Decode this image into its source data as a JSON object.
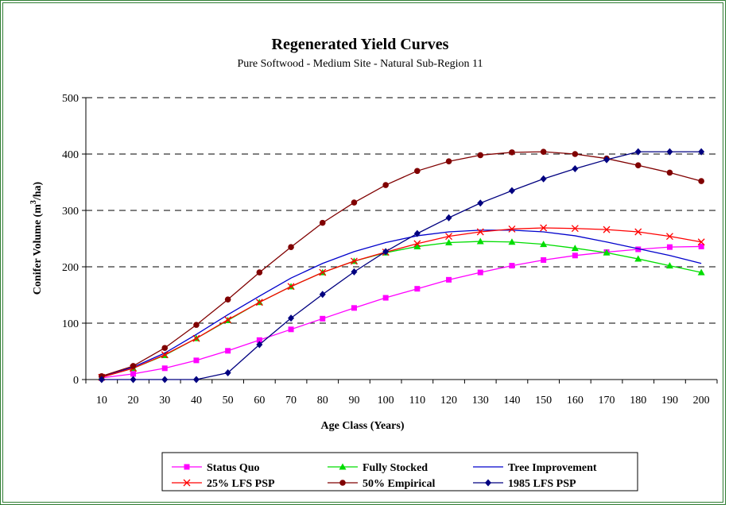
{
  "chart_data": {
    "type": "line",
    "title": "Regenerated Yield Curves",
    "subtitle": "Pure Softwood - Medium Site - Natural Sub-Region 11",
    "xlabel": "Age Class (Years)",
    "ylabel": "Conifer Volume (m³/ha)",
    "ylabel_parts": [
      "Conifer Volume (m",
      "3",
      "/ha)"
    ],
    "ylim": [
      0,
      500
    ],
    "yticks": [
      0,
      100,
      200,
      300,
      400,
      500
    ],
    "x": [
      10,
      20,
      30,
      40,
      50,
      60,
      70,
      80,
      90,
      100,
      110,
      120,
      130,
      140,
      150,
      160,
      170,
      180,
      190,
      200
    ],
    "grid": "horizontal dashed",
    "legend_position": "bottom",
    "series": [
      {
        "name": "Status Quo",
        "color": "#ff00ff",
        "marker": "square",
        "values": [
          3,
          10,
          20,
          34,
          51,
          70,
          89,
          108,
          127,
          145,
          161,
          177,
          190,
          202,
          212,
          220,
          226,
          231,
          235,
          236
        ]
      },
      {
        "name": "Fully Stocked",
        "color": "#00dd00",
        "marker": "triangle",
        "values": [
          4,
          20,
          43,
          73,
          105,
          137,
          165,
          190,
          210,
          225,
          236,
          243,
          245,
          244,
          240,
          233,
          225,
          214,
          202,
          190
        ]
      },
      {
        "name": "Tree Improvement",
        "color": "#0000cc",
        "marker": "none",
        "values": [
          5,
          22,
          47,
          80,
          115,
          148,
          180,
          206,
          227,
          243,
          255,
          262,
          265,
          265,
          262,
          255,
          244,
          232,
          220,
          206
        ]
      },
      {
        "name": "25% LFS PSP",
        "color": "#ff0000",
        "marker": "x",
        "values": [
          4,
          20,
          44,
          73,
          106,
          137,
          165,
          190,
          210,
          226,
          241,
          254,
          262,
          267,
          269,
          268,
          266,
          262,
          254,
          244
        ]
      },
      {
        "name": "50% Empirical",
        "color": "#800000",
        "marker": "circle",
        "values": [
          6,
          24,
          56,
          97,
          142,
          190,
          235,
          278,
          314,
          345,
          370,
          387,
          398,
          403,
          404,
          400,
          392,
          380,
          367,
          352
        ]
      },
      {
        "name": "1985 LFS PSP",
        "color": "#000080",
        "marker": "diamond",
        "values": [
          0,
          0,
          0,
          0,
          12,
          62,
          109,
          151,
          191,
          227,
          259,
          287,
          313,
          335,
          356,
          374,
          390,
          404,
          404,
          404
        ]
      }
    ]
  }
}
